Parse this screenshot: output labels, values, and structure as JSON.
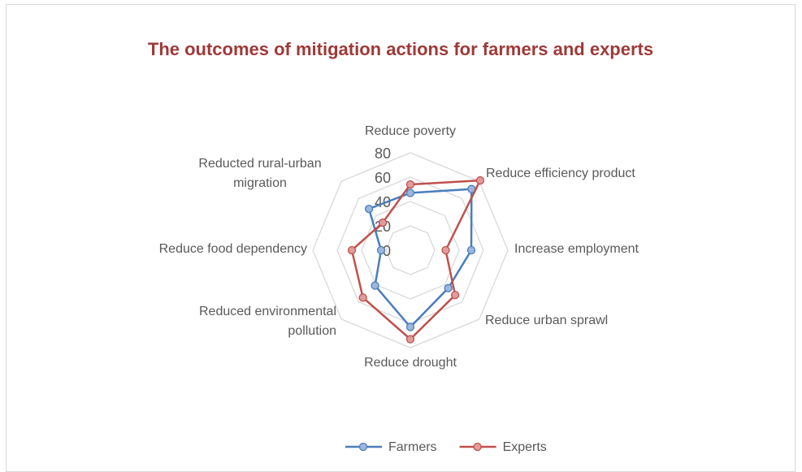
{
  "chart_data": {
    "type": "radar",
    "title": "The outcomes of mitigation actions for farmers and experts",
    "categories": [
      "Reduce poverty",
      "Reduce efficiency product",
      "Increase employment",
      "Reduce urban sprawl",
      "Reduce drought",
      "Reduced environmental pollution",
      "Reduce food dependency",
      "Reducted rural-urban migration"
    ],
    "series": [
      {
        "name": "Farmers",
        "color": "#4a7ebb",
        "values": [
          47,
          71,
          50,
          44,
          63,
          41,
          24,
          48
        ]
      },
      {
        "name": "Experts",
        "color": "#c0504d",
        "values": [
          54,
          81,
          29,
          52,
          73,
          55,
          48,
          32
        ]
      }
    ],
    "ylim": [
      0,
      80
    ],
    "yticks": [
      0,
      20,
      40,
      60,
      80
    ],
    "grid": true,
    "legend": "bottom"
  }
}
